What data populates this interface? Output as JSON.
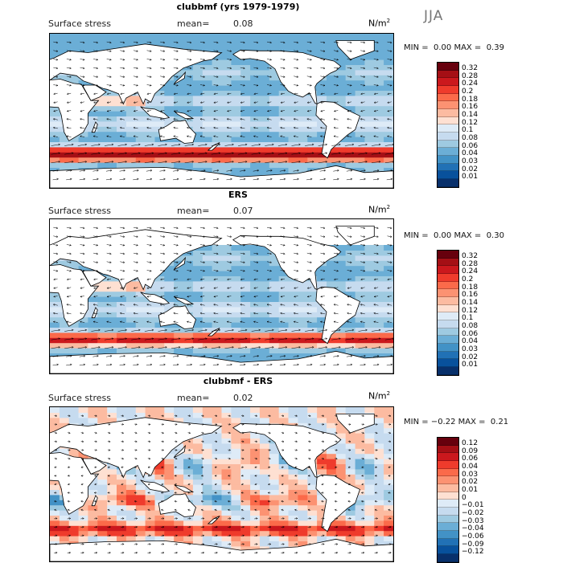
{
  "season": "JJA",
  "panels": [
    {
      "id": "model",
      "title": "clubbmf (yrs 1979-1979)",
      "subtitle": "Surface stress",
      "mean_label": "mean=",
      "mean_value": "0.08",
      "units": "N/m",
      "units_exp": "2",
      "min_label": "MIN =",
      "min_value": "0.00",
      "max_label": "MAX =",
      "max_value": "0.39",
      "colorbar_labels": [
        "0.32",
        "0.28",
        "0.24",
        "0.2",
        "0.18",
        "0.16",
        "0.14",
        "0.12",
        "0.1",
        "0.08",
        "0.06",
        "0.04",
        "0.03",
        "0.02",
        "0.01"
      ]
    },
    {
      "id": "obs",
      "title": "ERS",
      "subtitle": "Surface stress",
      "mean_label": "mean=",
      "mean_value": "0.07",
      "units": "N/m",
      "units_exp": "2",
      "min_label": "MIN =",
      "min_value": "0.00",
      "max_label": "MAX =",
      "max_value": "0.30",
      "colorbar_labels": [
        "0.32",
        "0.28",
        "0.24",
        "0.2",
        "0.18",
        "0.16",
        "0.14",
        "0.12",
        "0.1",
        "0.08",
        "0.06",
        "0.04",
        "0.03",
        "0.02",
        "0.01"
      ]
    },
    {
      "id": "diff",
      "title": "clubbmf - ERS",
      "subtitle": "Surface stress",
      "mean_label": "mean=",
      "mean_value": "0.02",
      "units": "N/m",
      "units_exp": "2",
      "min_label": "MIN =",
      "min_value": "−0.22",
      "max_label": "MAX =",
      "max_value": "0.21",
      "colorbar_labels": [
        "0.12",
        "0.09",
        "0.06",
        "0.04",
        "0.03",
        "0.02",
        "0.01",
        "0",
        "−0.01",
        "−0.02",
        "−0.03",
        "−0.04",
        "−0.06",
        "−0.09",
        "−0.12"
      ]
    }
  ],
  "colors": {
    "seq": [
      "#67000d",
      "#a50f15",
      "#cb181d",
      "#ef3b2c",
      "#fb6a4a",
      "#fc9272",
      "#fcbba1",
      "#fee0d2",
      "#deebf7",
      "#c6dbef",
      "#9ecae1",
      "#6baed6",
      "#4292c6",
      "#2171b5",
      "#08519c",
      "#08306b"
    ],
    "land": "#ffffff",
    "coast": "#000000"
  },
  "chart_data": [
    {
      "type": "heatmap",
      "title": "clubbmf (yrs 1979-1979)",
      "variable": "Surface stress",
      "units": "N/m^2",
      "mean": 0.08,
      "min": 0.0,
      "max": 0.39,
      "levels": [
        0.01,
        0.02,
        0.03,
        0.04,
        0.06,
        0.08,
        0.1,
        0.12,
        0.14,
        0.16,
        0.18,
        0.2,
        0.24,
        0.28,
        0.32
      ],
      "overlay": "wind stress vectors"
    },
    {
      "type": "heatmap",
      "title": "ERS",
      "variable": "Surface stress",
      "units": "N/m^2",
      "mean": 0.07,
      "min": 0.0,
      "max": 0.3,
      "levels": [
        0.01,
        0.02,
        0.03,
        0.04,
        0.06,
        0.08,
        0.1,
        0.12,
        0.14,
        0.16,
        0.18,
        0.2,
        0.24,
        0.28,
        0.32
      ],
      "overlay": "wind stress vectors"
    },
    {
      "type": "heatmap",
      "title": "clubbmf - ERS",
      "variable": "Surface stress",
      "units": "N/m^2",
      "mean": 0.02,
      "min": -0.22,
      "max": 0.21,
      "levels": [
        -0.12,
        -0.09,
        -0.06,
        -0.04,
        -0.03,
        -0.02,
        -0.01,
        0,
        0.01,
        0.02,
        0.03,
        0.04,
        0.06,
        0.09,
        0.12
      ],
      "overlay": "wind stress difference vectors"
    }
  ]
}
